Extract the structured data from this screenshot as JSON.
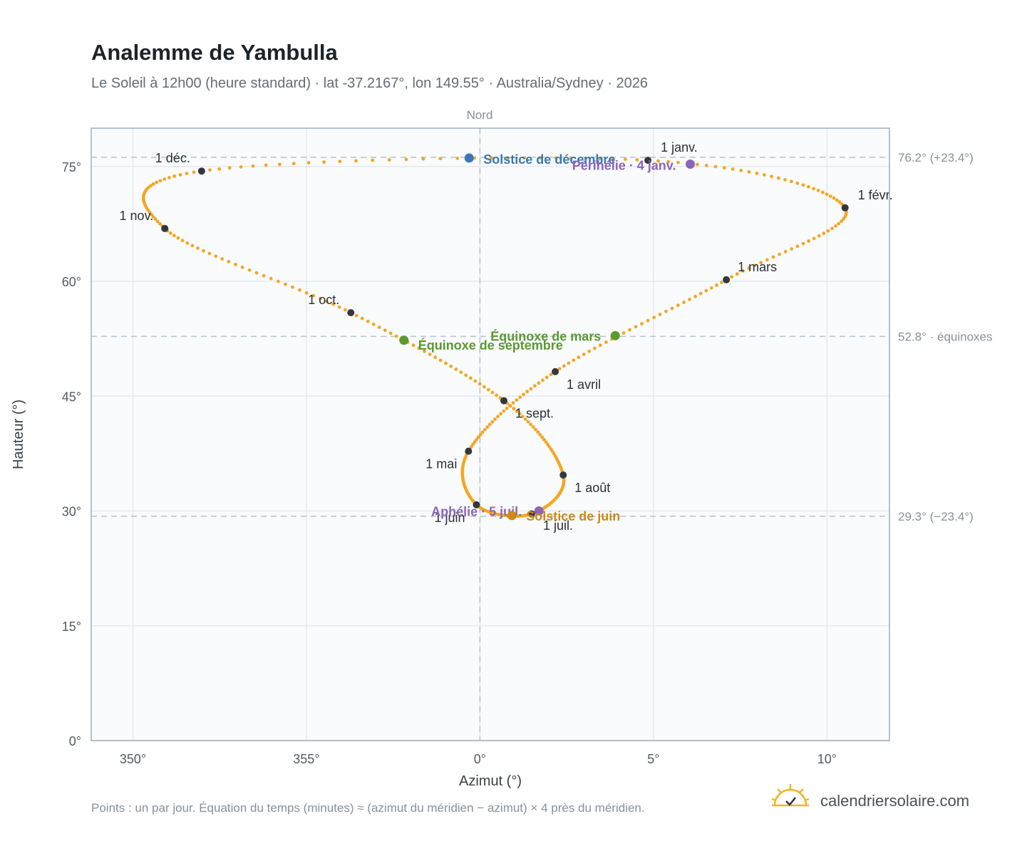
{
  "header": {
    "title": "Analemme de Yambulla",
    "subtitle": "Le Soleil à 12h00 (heure standard) · lat -37.2167°, lon 149.55° · Australia/Sydney · 2026"
  },
  "chart_data": {
    "type": "scatter",
    "xlabel": "Azimut (°)",
    "ylabel": "Hauteur (°)",
    "xlim": [
      348.8,
      11.8
    ],
    "ylim": [
      0,
      80
    ],
    "x_ticks": [
      {
        "value": 350,
        "label": "350°"
      },
      {
        "value": 355,
        "label": "355°"
      },
      {
        "value": 0,
        "label": "0°"
      },
      {
        "value": 5,
        "label": "5°"
      },
      {
        "value": 10,
        "label": "10°"
      }
    ],
    "y_ticks": [
      {
        "value": 0,
        "label": "0°"
      },
      {
        "value": 15,
        "label": "15°"
      },
      {
        "value": 30,
        "label": "30°"
      },
      {
        "value": 45,
        "label": "45°"
      },
      {
        "value": 60,
        "label": "60°"
      },
      {
        "value": 75,
        "label": "75°"
      }
    ],
    "grid": true,
    "north_label": "Nord",
    "north_azimuth": 0,
    "reference_lines": [
      {
        "altitude": 76.2,
        "label": "76.2° (+23.4°)"
      },
      {
        "altitude": 52.8,
        "label": "52.8° · équinoxes"
      },
      {
        "altitude": 29.3,
        "label": "29.3° (−23.4°)"
      }
    ],
    "month_markers": [
      {
        "label": "1 janv.",
        "az": 4.84,
        "alt": 75.8
      },
      {
        "label": "1 févr.",
        "az": 10.52,
        "alt": 69.6
      },
      {
        "label": "1 mars",
        "az": 7.1,
        "alt": 60.2
      },
      {
        "label": "1 avril",
        "az": 2.17,
        "alt": 48.2
      },
      {
        "label": "1 mai",
        "az": -0.33,
        "alt": 37.8
      },
      {
        "label": "1 juin",
        "az": -0.1,
        "alt": 30.8
      },
      {
        "label": "1 juil.",
        "az": 1.49,
        "alt": 29.6
      },
      {
        "label": "1 août",
        "az": 2.4,
        "alt": 34.7
      },
      {
        "label": "1 sept.",
        "az": 0.69,
        "alt": 44.4
      },
      {
        "label": "1 oct.",
        "az": -3.72,
        "alt": 55.9
      },
      {
        "label": "1 nov.",
        "az": -9.08,
        "alt": 66.9
      },
      {
        "label": "1 déc.",
        "az": -8.02,
        "alt": 74.4
      }
    ],
    "events": [
      {
        "label": "Solstice de décembre",
        "az": -0.31,
        "alt": 76.1,
        "color": "#3a78b5"
      },
      {
        "label": "Périhélie · 4 janv.",
        "az": 6.06,
        "alt": 75.3,
        "color": "#8c66b8"
      },
      {
        "label": "Équinoxe de mars",
        "az": 3.9,
        "alt": 52.9,
        "color": "#5a9a2f"
      },
      {
        "label": "Équinoxe de septembre",
        "az": -2.19,
        "alt": 52.3,
        "color": "#5a9a2f"
      },
      {
        "label": "Aphélie · 5 juil.",
        "az": 1.7,
        "alt": 30.0,
        "color": "#8c66b8"
      },
      {
        "label": "Solstice de juin",
        "az": 0.92,
        "alt": 29.4,
        "color": "#d08a12"
      }
    ],
    "colors": {
      "curve": "#f5a623",
      "marker": "#33373d",
      "reference_line": "#b8c2cc",
      "plot_bg": "#f9fbfd",
      "frame": "#a2adb9"
    }
  },
  "footer": {
    "note": "Points : un par jour. Équation du temps (minutes) ≈ (azimut du méridien − azimut) × 4 près du méridien.",
    "brand": "calendriersolaire.com",
    "brand_icon": "sun-check-icon"
  }
}
